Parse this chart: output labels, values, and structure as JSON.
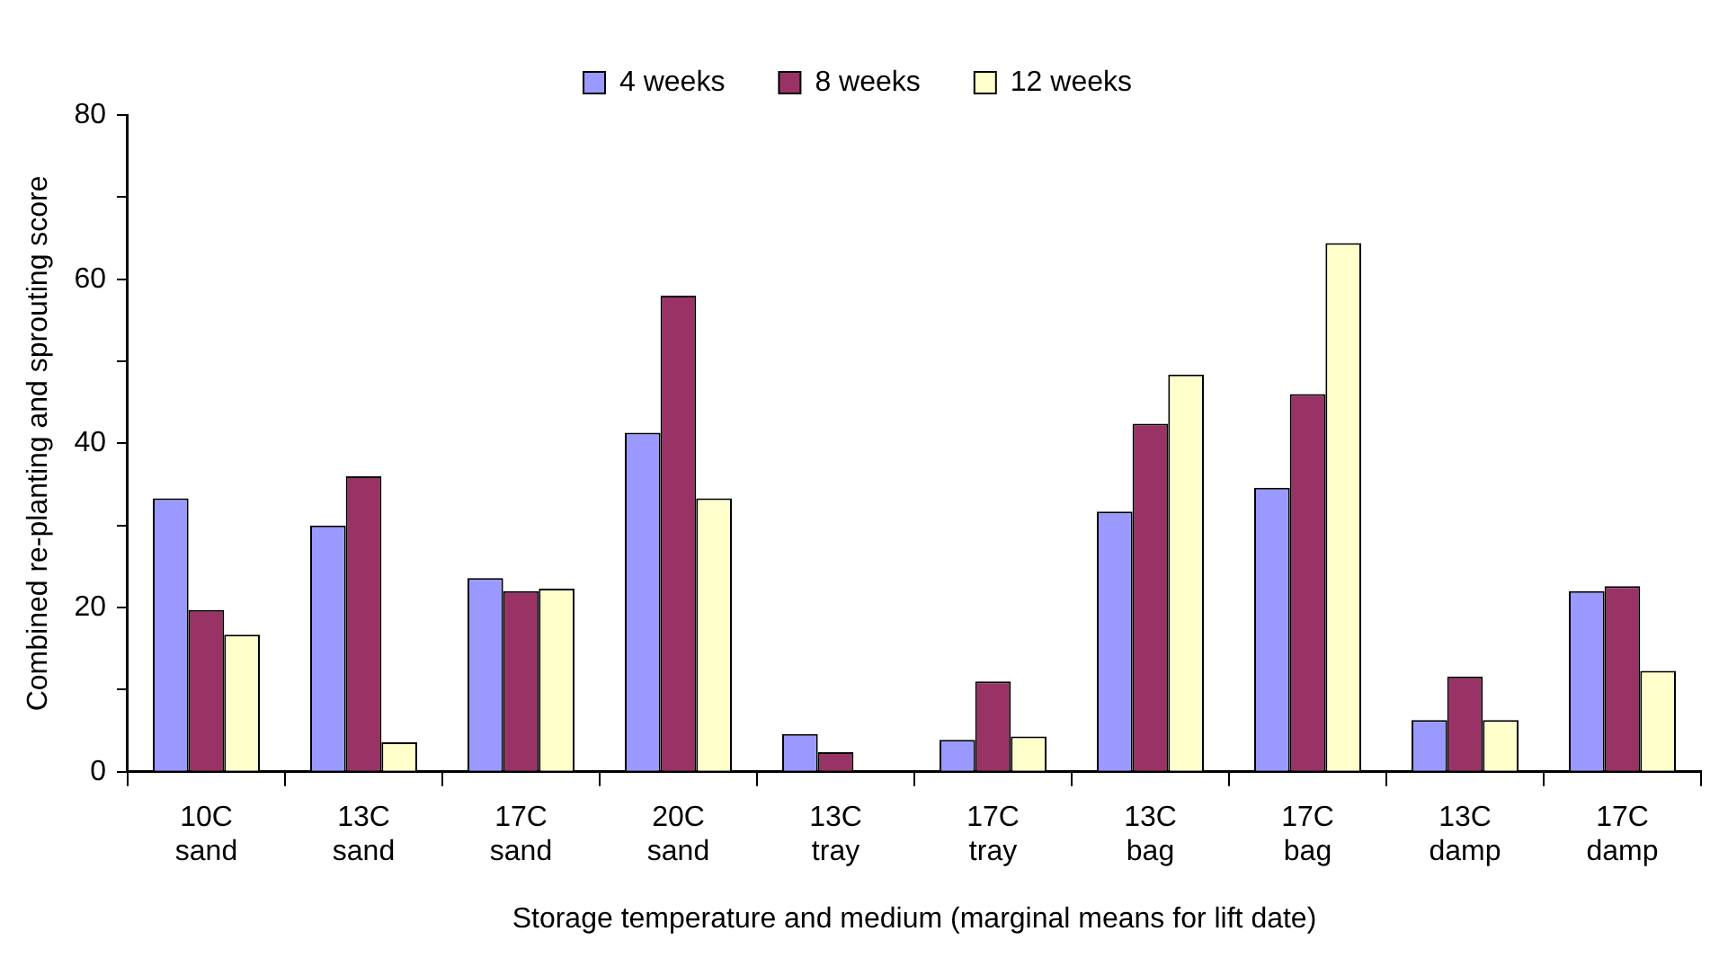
{
  "chart_data": {
    "type": "bar",
    "xlabel": "Storage temperature and medium (marginal means for lift date)",
    "ylabel": "Combined re-planting and sprouting score",
    "categories": [
      "10C sand",
      "13C sand",
      "17C sand",
      "20C sand",
      "13C  tray",
      "17C  tray",
      "13C  bag",
      "17C  bag",
      "13C damp",
      "17C damp"
    ],
    "series": [
      {
        "name": "4 weeks",
        "color": "#9999ff",
        "values": [
          33.3,
          30.0,
          23.6,
          41.3,
          4.6,
          3.9,
          31.7,
          34.6,
          6.3,
          22.0
        ]
      },
      {
        "name": "8 weeks",
        "color": "#993366",
        "values": [
          19.7,
          36.0,
          22.0,
          58.0,
          2.4,
          11.0,
          42.4,
          46.0,
          11.6,
          22.6
        ]
      },
      {
        "name": "12 weeks",
        "color": "#ffffcc",
        "values": [
          16.7,
          3.6,
          22.3,
          33.3,
          null,
          4.3,
          48.4,
          64.4,
          6.3,
          12.3
        ]
      }
    ],
    "ylim": [
      0,
      80
    ],
    "yticks": [
      0,
      {
        "value": 10,
        "label": null
      },
      20,
      {
        "value": 30,
        "label": null
      },
      40,
      {
        "value": 50,
        "label": null
      },
      60,
      {
        "value": 70,
        "label": null
      },
      80
    ],
    "grid": false,
    "legend": "top"
  }
}
